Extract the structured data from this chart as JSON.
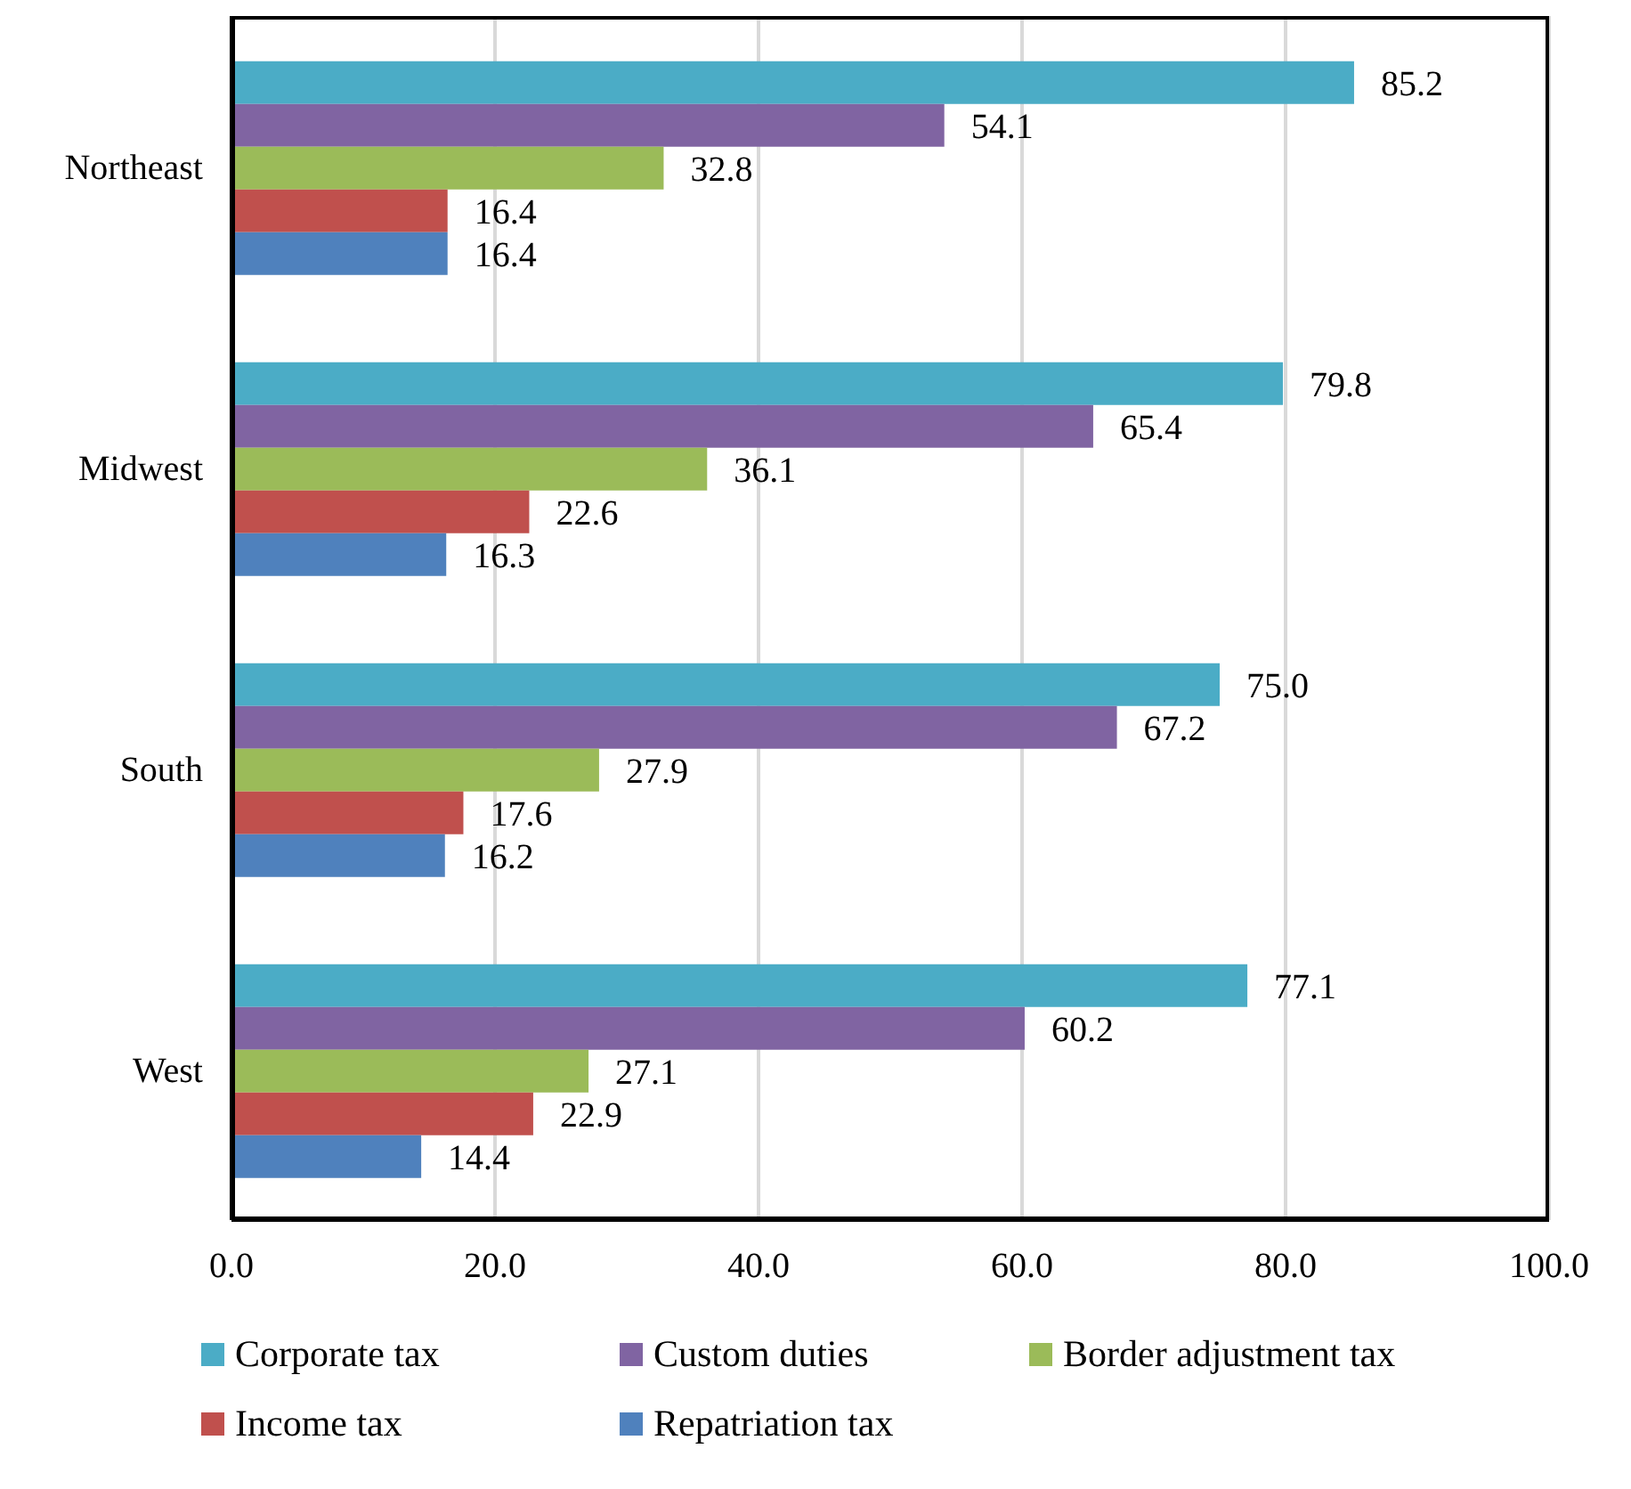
{
  "chart_data": {
    "type": "bar",
    "orientation": "horizontal",
    "categories": [
      "Northeast",
      "Midwest",
      "South",
      "West"
    ],
    "series": [
      {
        "name": "Corporate tax",
        "color": "#4bacc6",
        "values": [
          85.2,
          79.8,
          75.0,
          77.1
        ],
        "value_labels": [
          "85.2",
          "79.8",
          "75.0",
          "77.1"
        ]
      },
      {
        "name": "Custom duties",
        "color": "#8064a2",
        "values": [
          54.1,
          65.4,
          67.2,
          60.2
        ],
        "value_labels": [
          "54.1",
          "65.4",
          "67.2",
          "60.2"
        ]
      },
      {
        "name": "Border adjustment tax",
        "color": "#9bbb59",
        "values": [
          32.8,
          36.1,
          27.9,
          27.1
        ],
        "value_labels": [
          "32.8",
          "36.1",
          "27.9",
          "27.1"
        ]
      },
      {
        "name": "Income tax",
        "color": "#c0504d",
        "values": [
          16.4,
          22.6,
          17.6,
          22.9
        ],
        "value_labels": [
          "16.4",
          "22.6",
          "17.6",
          "22.9"
        ]
      },
      {
        "name": "Repatriation tax",
        "color": "#4f81bd",
        "values": [
          16.4,
          16.3,
          16.2,
          14.4
        ],
        "value_labels": [
          "16.4",
          "16.3",
          "16.2",
          "14.4"
        ]
      }
    ],
    "xlim": [
      0,
      100
    ],
    "xticks": [
      {
        "value": 0,
        "label": "0.0"
      },
      {
        "value": 20,
        "label": "20.0"
      },
      {
        "value": 40,
        "label": "40.0"
      },
      {
        "value": 60,
        "label": "60.0"
      },
      {
        "value": 80,
        "label": "80.0"
      },
      {
        "value": 100,
        "label": "100.0"
      }
    ],
    "grid": "x",
    "legend": "bottom"
  }
}
